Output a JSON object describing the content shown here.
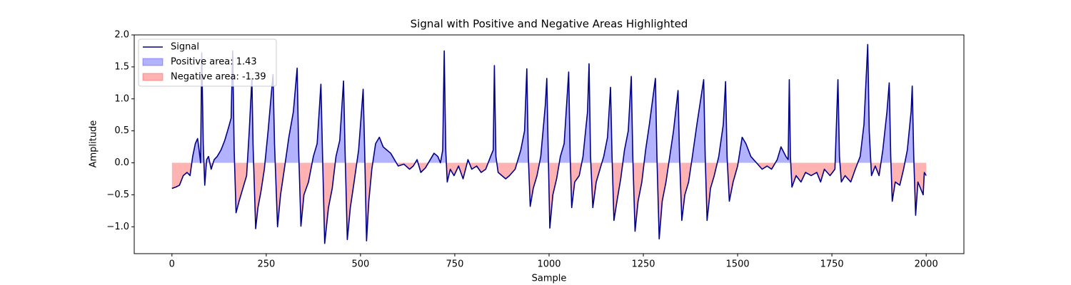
{
  "chart_data": {
    "type": "line",
    "title": "Signal with Positive and Negative Areas Highlighted",
    "xlabel": "Sample",
    "ylabel": "Amplitude",
    "xlim": [
      -100,
      2100
    ],
    "ylim": [
      -1.42,
      2.0
    ],
    "xticks": [
      0,
      250,
      500,
      750,
      1000,
      1250,
      1500,
      1750,
      2000
    ],
    "yticks": [
      {
        "value": -1.0,
        "label": "−1.0"
      },
      {
        "value": -0.5,
        "label": "−0.5"
      },
      {
        "value": 0.0,
        "label": "0.0"
      },
      0.5,
      {
        "value": 1.0,
        "label": "1.0"
      },
      1.5,
      {
        "value": 2.0,
        "label": "2.0"
      }
    ],
    "grid": false,
    "legend": "upper left",
    "x": [
      0,
      10,
      20,
      30,
      40,
      48,
      55,
      62,
      68,
      72,
      76,
      79,
      83,
      87,
      92,
      97,
      104,
      112,
      120,
      130,
      140,
      150,
      157,
      161,
      165,
      170,
      178,
      188,
      198,
      205,
      212,
      215,
      222,
      228,
      236,
      245,
      255,
      268,
      272,
      280,
      288,
      298,
      310,
      322,
      332,
      336,
      342,
      350,
      362,
      375,
      385,
      395,
      399,
      405,
      415,
      425,
      435,
      445,
      455,
      459,
      465,
      473,
      483,
      495,
      507,
      511,
      516,
      522,
      530,
      540,
      550,
      560,
      570,
      580,
      590,
      600,
      615,
      630,
      640,
      650,
      660,
      672,
      685,
      695,
      705,
      712,
      718,
      722,
      726,
      730,
      738,
      748,
      760,
      772,
      785,
      795,
      808,
      820,
      832,
      845,
      852,
      855,
      859,
      865,
      875,
      885,
      895,
      910,
      925,
      935,
      941,
      945,
      950,
      958,
      968,
      978,
      990,
      994,
      998,
      1002,
      1010,
      1020,
      1030,
      1040,
      1052,
      1056,
      1060,
      1068,
      1080,
      1090,
      1102,
      1106,
      1110,
      1116,
      1125,
      1135,
      1145,
      1155,
      1163,
      1167,
      1172,
      1180,
      1190,
      1200,
      1210,
      1218,
      1222,
      1228,
      1236,
      1246,
      1256,
      1266,
      1282,
      1286,
      1292,
      1300,
      1310,
      1320,
      1330,
      1342,
      1346,
      1352,
      1360,
      1370,
      1380,
      1392,
      1410,
      1414,
      1419,
      1428,
      1438,
      1450,
      1462,
      1468,
      1472,
      1478,
      1488,
      1500,
      1512,
      1522,
      1535,
      1550,
      1565,
      1578,
      1590,
      1605,
      1615,
      1628,
      1634,
      1637,
      1640,
      1644,
      1655,
      1668,
      1680,
      1695,
      1710,
      1720,
      1730,
      1745,
      1758,
      1766,
      1770,
      1775,
      1785,
      1800,
      1812,
      1825,
      1835,
      1845,
      1849,
      1855,
      1865,
      1875,
      1885,
      1896,
      1902,
      1906,
      1910,
      1918,
      1930,
      1940,
      1950,
      1960,
      1963,
      1967,
      1972,
      1978,
      1985,
      1992,
      1995,
      2000
    ],
    "series": [
      {
        "name": "Signal",
        "color": "#00008b",
        "values": [
          -0.4,
          -0.38,
          -0.35,
          -0.2,
          -0.15,
          -0.2,
          0.1,
          0.3,
          0.38,
          0.2,
          0.0,
          1.72,
          0.3,
          -0.35,
          0.05,
          0.1,
          -0.1,
          0.05,
          0.1,
          0.2,
          0.35,
          0.55,
          0.7,
          1.75,
          0.2,
          -0.78,
          -0.6,
          -0.4,
          -0.2,
          0.5,
          1.32,
          0.3,
          -1.03,
          -0.7,
          -0.45,
          -0.1,
          0.5,
          1.38,
          0.3,
          -1.0,
          -0.5,
          -0.1,
          0.4,
          0.8,
          1.48,
          0.2,
          -0.99,
          -0.5,
          -0.3,
          0.1,
          0.3,
          1.23,
          0.2,
          -1.26,
          -0.7,
          -0.4,
          0.1,
          0.35,
          1.28,
          0.2,
          -1.2,
          -0.7,
          -0.3,
          0.2,
          1.15,
          0.2,
          -1.22,
          -0.6,
          -0.1,
          0.3,
          0.4,
          0.25,
          0.2,
          0.15,
          0.05,
          -0.05,
          -0.02,
          -0.1,
          -0.05,
          0.05,
          -0.15,
          -0.08,
          0.05,
          0.15,
          0.1,
          0.0,
          0.2,
          1.75,
          0.2,
          -0.3,
          -0.1,
          -0.2,
          -0.05,
          -0.25,
          0.05,
          -0.1,
          -0.05,
          -0.15,
          -0.1,
          0.1,
          0.2,
          1.52,
          0.1,
          -0.15,
          -0.2,
          -0.25,
          -0.2,
          -0.1,
          0.2,
          0.5,
          1.47,
          0.1,
          -0.68,
          -0.4,
          -0.2,
          0.1,
          0.9,
          1.32,
          0.1,
          -1.02,
          -0.5,
          -0.25,
          0.1,
          0.3,
          1.42,
          0.1,
          -0.7,
          -0.3,
          -0.2,
          0.1,
          0.8,
          1.55,
          0.1,
          -0.7,
          -0.3,
          -0.1,
          0.1,
          0.4,
          1.18,
          0.1,
          -0.9,
          -0.6,
          -0.25,
          0.2,
          0.5,
          1.35,
          0.1,
          -1.07,
          -0.6,
          -0.3,
          0.2,
          0.6,
          1.32,
          0.1,
          -1.19,
          -0.6,
          -0.3,
          0.1,
          0.5,
          1.13,
          0.1,
          -0.9,
          -0.5,
          -0.3,
          0.1,
          0.6,
          1.3,
          0.1,
          -0.9,
          -0.4,
          -0.2,
          0.1,
          0.6,
          1.27,
          0.1,
          -0.6,
          -0.3,
          -0.05,
          0.4,
          0.3,
          0.1,
          0.0,
          -0.1,
          -0.05,
          -0.1,
          0.05,
          0.25,
          0.1,
          0.05,
          1.3,
          0.1,
          -0.38,
          -0.2,
          -0.3,
          -0.15,
          -0.2,
          -0.15,
          -0.3,
          -0.1,
          -0.2,
          -0.1,
          1.3,
          0.1,
          -0.3,
          -0.2,
          -0.3,
          -0.1,
          0.1,
          0.6,
          1.85,
          0.5,
          -0.2,
          -0.05,
          -0.2,
          0.2,
          0.8,
          1.25,
          0.1,
          -0.6,
          -0.3,
          -0.35,
          -0.1,
          0.2,
          0.8,
          1.2,
          0.1,
          -0.82,
          -0.3,
          -0.4,
          -0.5,
          -0.15,
          -0.2
        ]
      }
    ],
    "fills": [
      {
        "name": "Positive area: 1.43",
        "color": "#0000ff",
        "alpha": 0.3,
        "where": "above"
      },
      {
        "name": "Negative area: -1.39",
        "color": "#ff0000",
        "alpha": 0.3,
        "where": "below"
      }
    ]
  }
}
